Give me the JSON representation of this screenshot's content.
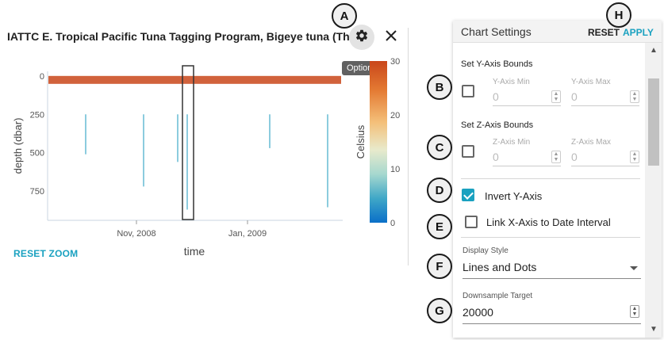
{
  "panel": {
    "title": "IATTC E. Tropical Pacific Tuna Tagging Program, Bigeye tuna (Th...",
    "tooltip": "Options",
    "reset_zoom": "RESET ZOOM",
    "gear_icon": "gear-icon",
    "close_icon": "close-icon"
  },
  "chart_data": {
    "type": "scatter",
    "xlabel": "time",
    "ylabel": "depth (dbar)",
    "x_ticks": [
      "Nov, 2008",
      "Jan, 2009"
    ],
    "y_ticks": [
      0,
      250,
      500,
      750
    ],
    "ylim": [
      940,
      -30
    ],
    "y_inverted": true,
    "colorbar": {
      "label": "Celsius",
      "ticks": [
        30,
        20,
        10,
        0
      ],
      "range": [
        0,
        30
      ],
      "colors": [
        "#c9461a",
        "#e47a33",
        "#f4c07a",
        "#e8eacc",
        "#a6d8cf",
        "#3fa7c7",
        "#0a6fc8"
      ]
    },
    "selection_box": {
      "x_start": "2008-11-22",
      "x_end": "2008-11-29"
    }
  },
  "callouts": [
    "A",
    "B",
    "C",
    "D",
    "E",
    "F",
    "G",
    "H"
  ],
  "settings": {
    "title": "Chart Settings",
    "reset": "RESET",
    "apply": "APPLY",
    "y_bounds_label": "Set Y-Axis Bounds",
    "y_min_label": "Y-Axis Min",
    "y_min_value": "0",
    "y_max_label": "Y-Axis Max",
    "y_max_value": "0",
    "z_bounds_label": "Set Z-Axis Bounds",
    "z_min_label": "Z-Axis Min",
    "z_min_value": "0",
    "z_max_label": "Z-Axis Max",
    "z_max_value": "0",
    "invert_y_label": "Invert Y-Axis",
    "invert_y_checked": true,
    "link_x_label": "Link X-Axis to Date Interval",
    "link_x_checked": false,
    "display_style_label": "Display Style",
    "display_style_value": "Lines and Dots",
    "downsample_label": "Downsample Target",
    "downsample_value": "20000"
  },
  "accent_color": "#1aa1c0"
}
